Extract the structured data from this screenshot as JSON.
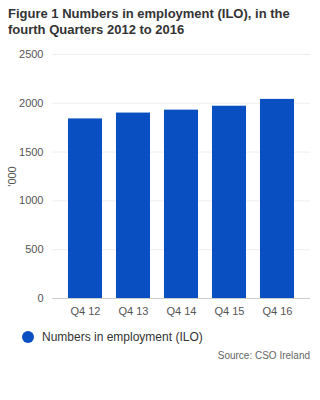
{
  "chart_data": {
    "type": "bar",
    "title": "Figure 1 Numbers in employment (ILO), in the fourth Quarters 2012 to 2016",
    "ylabel": "'000",
    "categories": [
      "Q4 12",
      "Q4 13",
      "Q4 14",
      "Q4 15",
      "Q4 16"
    ],
    "series": [
      {
        "name": "Numbers in employment (ILO)",
        "color": "#0a4fc2",
        "values": [
          1840,
          1900,
          1930,
          1970,
          2040
        ]
      }
    ],
    "ylim": [
      0,
      2500
    ],
    "yticks": [
      0,
      500,
      1000,
      1500,
      2000,
      2500
    ],
    "grid": true,
    "legend": "bottom",
    "caption": "Source: CSO Ireland"
  }
}
